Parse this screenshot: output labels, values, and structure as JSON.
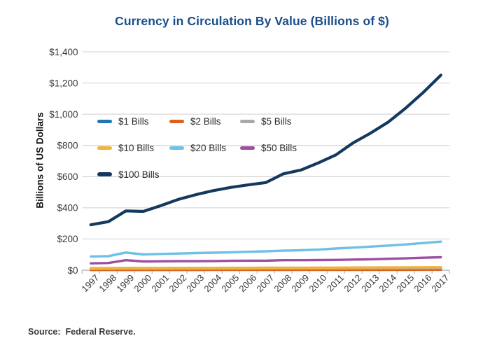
{
  "chart_data": {
    "type": "line",
    "title": "Currency in Circulation By Value (Billions of $)",
    "xlabel": "",
    "ylabel": "Billions of US Dollars",
    "source": "Source:  Federal Reserve.",
    "grid": true,
    "legend_position": "upper-left-inside",
    "ylim": [
      0,
      1400
    ],
    "x": [
      1997,
      1998,
      1999,
      2000,
      2001,
      2002,
      2003,
      2004,
      2005,
      2006,
      2007,
      2008,
      2009,
      2010,
      2011,
      2012,
      2013,
      2014,
      2015,
      2016,
      2017
    ],
    "x_tick_labels": [
      "1997",
      "1998",
      "1999",
      "2000",
      "2001",
      "2002",
      "2003",
      "2004",
      "2005",
      "2006",
      "2007",
      "2008",
      "2009",
      "2010",
      "2011",
      "2012",
      "2013",
      "2014",
      "2015",
      "2016",
      "2017"
    ],
    "y_ticks": {
      "values": [
        0,
        200,
        400,
        600,
        800,
        1000,
        1200,
        1400
      ],
      "labels": [
        "$0",
        "$200",
        "$400",
        "$600",
        "$800",
        "$1,000",
        "$1,200",
        "$1,400"
      ]
    },
    "series": [
      {
        "name": "$1 Bills",
        "color": "#1f78b4",
        "width": 3.4,
        "values": [
          6.9,
          7.1,
          7.7,
          7.7,
          7.8,
          8.0,
          8.2,
          8.4,
          8.6,
          8.8,
          9.0,
          9.2,
          9.4,
          9.6,
          9.9,
          10.3,
          10.6,
          10.9,
          11.2,
          11.4,
          11.7
        ]
      },
      {
        "name": "$2 Bills",
        "color": "#d9621e",
        "width": 3.4,
        "values": [
          1.2,
          1.3,
          1.4,
          1.4,
          1.4,
          1.5,
          1.5,
          1.6,
          1.6,
          1.7,
          1.7,
          1.8,
          1.9,
          2.0,
          2.1,
          2.2,
          2.3,
          2.3,
          2.4,
          2.5,
          2.5
        ]
      },
      {
        "name": "$5 Bills",
        "color": "#a7a9ac",
        "width": 3.4,
        "values": [
          8.1,
          8.3,
          9.0,
          8.7,
          8.9,
          9.1,
          9.3,
          9.5,
          9.7,
          9.9,
          10.1,
          10.6,
          10.8,
          11.0,
          11.2,
          11.5,
          11.8,
          12.1,
          12.4,
          12.7,
          13.1
        ]
      },
      {
        "name": "$10 Bills",
        "color": "#f0b33c",
        "width": 3.4,
        "values": [
          13.6,
          13.9,
          14.9,
          14.3,
          14.5,
          14.6,
          14.8,
          14.9,
          15.1,
          15.3,
          15.5,
          16.0,
          16.2,
          16.4,
          16.7,
          17.0,
          17.4,
          17.8,
          18.3,
          18.8,
          19.4
        ]
      },
      {
        "name": "$20 Bills",
        "color": "#6ec0e6",
        "width": 3.4,
        "values": [
          88,
          90,
          113,
          101,
          104,
          107,
          110,
          112,
          115,
          118,
          121,
          125,
          128,
          132,
          139,
          145,
          151,
          158,
          165,
          174,
          183
        ]
      },
      {
        "name": "$50 Bills",
        "color": "#9e4f9d",
        "width": 3.4,
        "values": [
          44,
          46,
          64,
          56,
          57,
          58,
          58,
          59,
          60,
          61,
          61,
          64,
          64,
          65,
          66,
          68,
          70,
          73,
          76,
          80,
          83
        ]
      },
      {
        "name": "$100 Bills",
        "color": "#15395e",
        "width": 4.2,
        "values": [
          291,
          311,
          380,
          377,
          414,
          454,
          484,
          510,
          531,
          547,
          562,
          618,
          642,
          688,
          739,
          817,
          880,
          950,
          1040,
          1140,
          1250
        ]
      }
    ]
  },
  "colors": {
    "title": "#1b4e8a",
    "axis_text": "#383838",
    "grid": "#d9d9d9",
    "axis_line": "#c2c2c2"
  }
}
